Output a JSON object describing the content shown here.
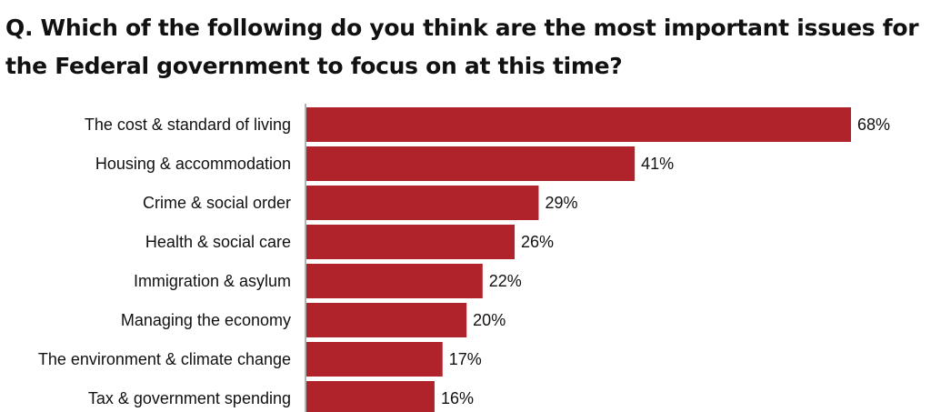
{
  "chart_data": {
    "type": "bar",
    "orientation": "horizontal",
    "title": "Q. Which of the following do you think are the most important issues for the Federal government to focus on at this time?",
    "categories": [
      "The cost & standard of living",
      "Housing & accommodation",
      "Crime & social order",
      "Health & social care",
      "Immigration & asylum",
      "Managing the economy",
      "The environment & climate change",
      "Tax & government spending"
    ],
    "values": [
      68,
      41,
      29,
      26,
      22,
      20,
      17,
      16
    ],
    "value_labels": [
      "68%",
      "41%",
      "29%",
      "26%",
      "22%",
      "20%",
      "17%",
      "16%"
    ],
    "unit": "%",
    "xlim": [
      0,
      68
    ],
    "grid": false,
    "legend": "none",
    "bar_color": "#b0232a",
    "axis_color": "#999999",
    "text_color": "#111111"
  }
}
